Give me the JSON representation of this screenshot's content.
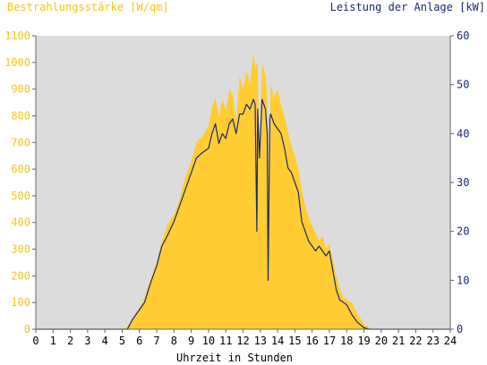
{
  "chart_data": {
    "type": "area",
    "left_axis_title": "Bestrahlungsstärke [W/qm]",
    "right_axis_title": "Leistung der Anlage [kW]",
    "xlabel": "Uhrzeit in Stunden",
    "xlim": [
      0,
      24
    ],
    "ylim_left": [
      0,
      1100
    ],
    "ylim_right": [
      0,
      60
    ],
    "x_ticks": [
      "0",
      "1",
      "2",
      "3",
      "4",
      "5",
      "6",
      "7",
      "8",
      "9",
      "10",
      "11",
      "12",
      "13",
      "14",
      "15",
      "16",
      "17",
      "18",
      "19",
      "20",
      "21",
      "22",
      "23",
      "24"
    ],
    "y_left_ticks": [
      "0",
      "100",
      "200",
      "300",
      "400",
      "500",
      "600",
      "700",
      "800",
      "900",
      "1000",
      "1100"
    ],
    "y_right_ticks": [
      "0",
      "10",
      "20",
      "30",
      "40",
      "50",
      "60"
    ],
    "grid": false,
    "colors": {
      "irradiance_fill": "#ffcc33",
      "power_line": "#1c2a6e",
      "plot_background": "#dcdcdc",
      "left_axis_text": "#f5c518",
      "right_axis_text": "#1c2a6e"
    },
    "series": [
      {
        "axis": "left",
        "style": "area",
        "x": [
          0,
          5.0,
          5.3,
          5.6,
          6.0,
          6.3,
          6.6,
          7.0,
          7.3,
          7.6,
          8.0,
          8.3,
          8.6,
          9.0,
          9.3,
          9.6,
          10.0,
          10.2,
          10.4,
          10.6,
          10.8,
          11.0,
          11.2,
          11.4,
          11.6,
          11.8,
          12.0,
          12.2,
          12.4,
          12.6,
          12.7,
          12.85,
          12.95,
          13.1,
          13.3,
          13.4,
          13.5,
          13.6,
          13.8,
          14.0,
          14.2,
          14.4,
          14.6,
          14.8,
          15.0,
          15.2,
          15.4,
          15.6,
          15.8,
          16.0,
          16.2,
          16.4,
          16.6,
          16.8,
          17.0,
          17.2,
          17.4,
          17.6,
          17.8,
          18.0,
          18.3,
          18.6,
          19.0,
          19.3,
          19.6,
          20.0,
          24
        ],
        "y": [
          0,
          0,
          10,
          40,
          80,
          120,
          180,
          250,
          330,
          390,
          430,
          480,
          560,
          630,
          700,
          720,
          760,
          830,
          870,
          800,
          860,
          820,
          900,
          880,
          780,
          950,
          900,
          970,
          920,
          1040,
          980,
          1000,
          600,
          1000,
          950,
          860,
          500,
          920,
          870,
          900,
          840,
          800,
          740,
          690,
          650,
          600,
          520,
          460,
          420,
          390,
          360,
          330,
          350,
          300,
          320,
          260,
          200,
          150,
          120,
          110,
          100,
          60,
          20,
          5,
          0,
          0,
          0
        ]
      },
      {
        "axis": "right",
        "style": "line",
        "x": [
          0,
          5.3,
          5.6,
          6.0,
          6.3,
          6.6,
          7.0,
          7.3,
          7.6,
          8.0,
          8.3,
          8.6,
          9.0,
          9.3,
          9.6,
          10.0,
          10.2,
          10.4,
          10.6,
          10.8,
          11.0,
          11.2,
          11.4,
          11.6,
          11.8,
          12.0,
          12.2,
          12.4,
          12.6,
          12.7,
          12.8,
          12.85,
          12.95,
          13.1,
          13.3,
          13.4,
          13.45,
          13.55,
          13.6,
          13.8,
          14.0,
          14.2,
          14.4,
          14.6,
          14.8,
          15.0,
          15.2,
          15.4,
          15.6,
          15.8,
          16.0,
          16.2,
          16.4,
          16.6,
          16.8,
          17.0,
          17.2,
          17.4,
          17.6,
          17.8,
          18.0,
          18.3,
          18.6,
          19.0,
          19.3,
          19.6,
          24
        ],
        "y": [
          0,
          0,
          2,
          4,
          5.5,
          9,
          13,
          17,
          19,
          22,
          25,
          28,
          32,
          35,
          36,
          37,
          40,
          42,
          38,
          40,
          39,
          42,
          43,
          40,
          44,
          44,
          46,
          45,
          47,
          46,
          20,
          45,
          35,
          47,
          45,
          40,
          10,
          43,
          44,
          42,
          41,
          40,
          37,
          33,
          32,
          30,
          28,
          22,
          20,
          18,
          17,
          16,
          17,
          16,
          15,
          16,
          12,
          8,
          6,
          5.5,
          5,
          3,
          1.5,
          0.3,
          0,
          0,
          0
        ]
      }
    ]
  }
}
